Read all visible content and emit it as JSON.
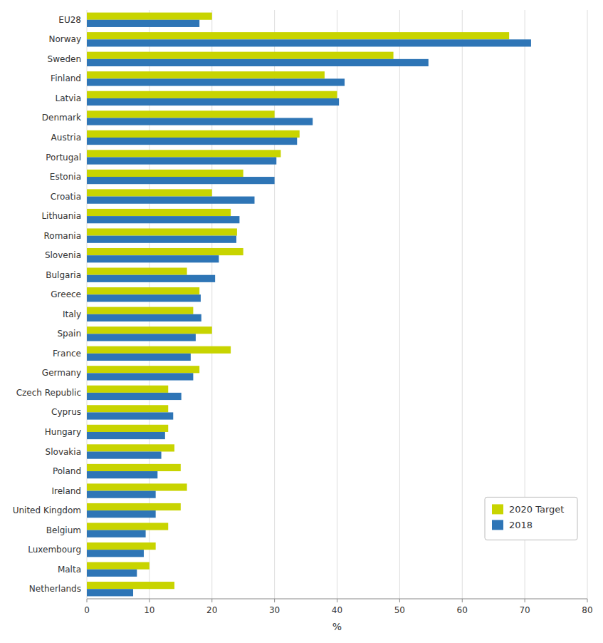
{
  "chart_data": {
    "type": "bar",
    "orientation": "horizontal",
    "categories": [
      "EU28",
      "Norway",
      "Sweden",
      "Finland",
      "Latvia",
      "Denmark",
      "Austria",
      "Portugal",
      "Estonia",
      "Croatia",
      "Lithuania",
      "Romania",
      "Slovenia",
      "Bulgaria",
      "Greece",
      "Italy",
      "Spain",
      "France",
      "Germany",
      "Czech Republic",
      "Cyprus",
      "Hungary",
      "Slovakia",
      "Poland",
      "Ireland",
      "United Kingdom",
      "Belgium",
      "Luxembourg",
      "Malta",
      "Netherlands"
    ],
    "series": [
      {
        "name": "2020 Target",
        "color": "#c8d400",
        "values": [
          20,
          67.5,
          49,
          38,
          40,
          30,
          34,
          31,
          25,
          20,
          23,
          24,
          25,
          16,
          18,
          17,
          20,
          23,
          18,
          13,
          13,
          13,
          14,
          15,
          16,
          15,
          13,
          11,
          10,
          14
        ]
      },
      {
        "name": "2018",
        "color": "#2e75b6",
        "values": [
          18,
          71,
          54.6,
          41.2,
          40.3,
          36.1,
          33.6,
          30.3,
          30.0,
          26.8,
          24.4,
          23.9,
          21.1,
          20.5,
          18.2,
          18.3,
          17.4,
          16.6,
          17.0,
          15.1,
          13.8,
          12.5,
          11.9,
          11.3,
          11.0,
          11.0,
          9.4,
          9.1,
          8.0,
          7.4
        ]
      }
    ],
    "xlabel": "%",
    "xlim": [
      0,
      80
    ],
    "xticks": [
      0,
      10,
      20,
      30,
      40,
      50,
      60,
      70,
      80
    ],
    "grid": true,
    "legend": "lower right"
  }
}
